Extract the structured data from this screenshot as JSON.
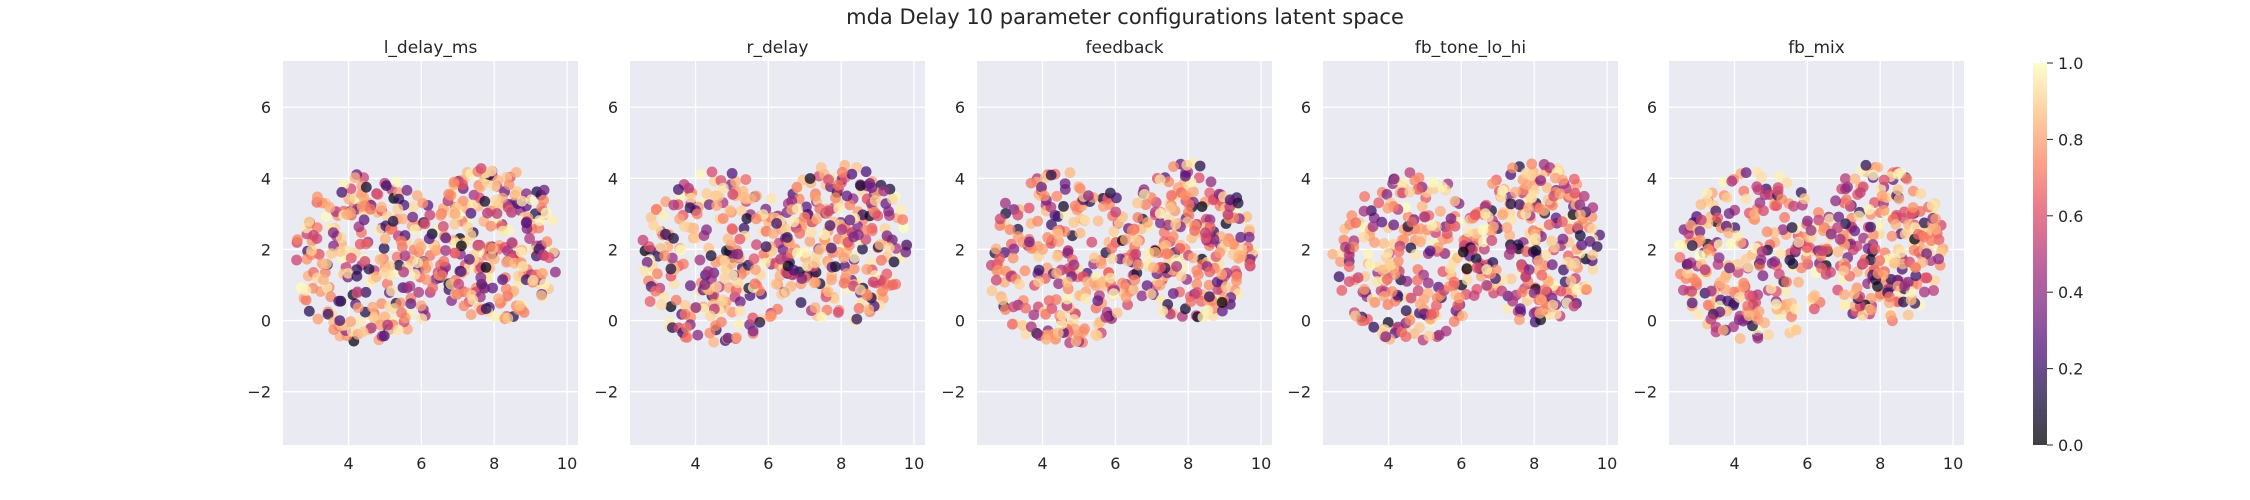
{
  "chart_data": {
    "type": "scatter",
    "title": "mda Delay 10 parameter configurations latent space",
    "xlim": [
      2.2,
      10.3
    ],
    "ylim": [
      -3.5,
      7.3
    ],
    "xticks": [
      4,
      6,
      8,
      10
    ],
    "yticks": [
      -2,
      0,
      2,
      4,
      6
    ],
    "grid": true,
    "colormap": "magma",
    "color_range": [
      0.0,
      1.0
    ],
    "colorbar_ticks": [
      "0.0",
      "0.2",
      "0.4",
      "0.6",
      "0.8",
      "1.0"
    ],
    "colors": {
      "axes_background": "#eaeaf2",
      "grid": "#ffffff",
      "text": "#262626"
    },
    "clusters": [
      {
        "center": [
          4.55,
          1.75
        ],
        "radius": [
          2.2,
          2.55
        ]
      },
      {
        "center": [
          8.05,
          2.2
        ],
        "radius": [
          1.85,
          2.35
        ]
      }
    ],
    "panels": [
      {
        "title": "l_delay_ms"
      },
      {
        "title": "r_delay"
      },
      {
        "title": "feedback"
      },
      {
        "title": "fb_tone_lo_hi"
      },
      {
        "title": "fb_mix"
      }
    ]
  }
}
